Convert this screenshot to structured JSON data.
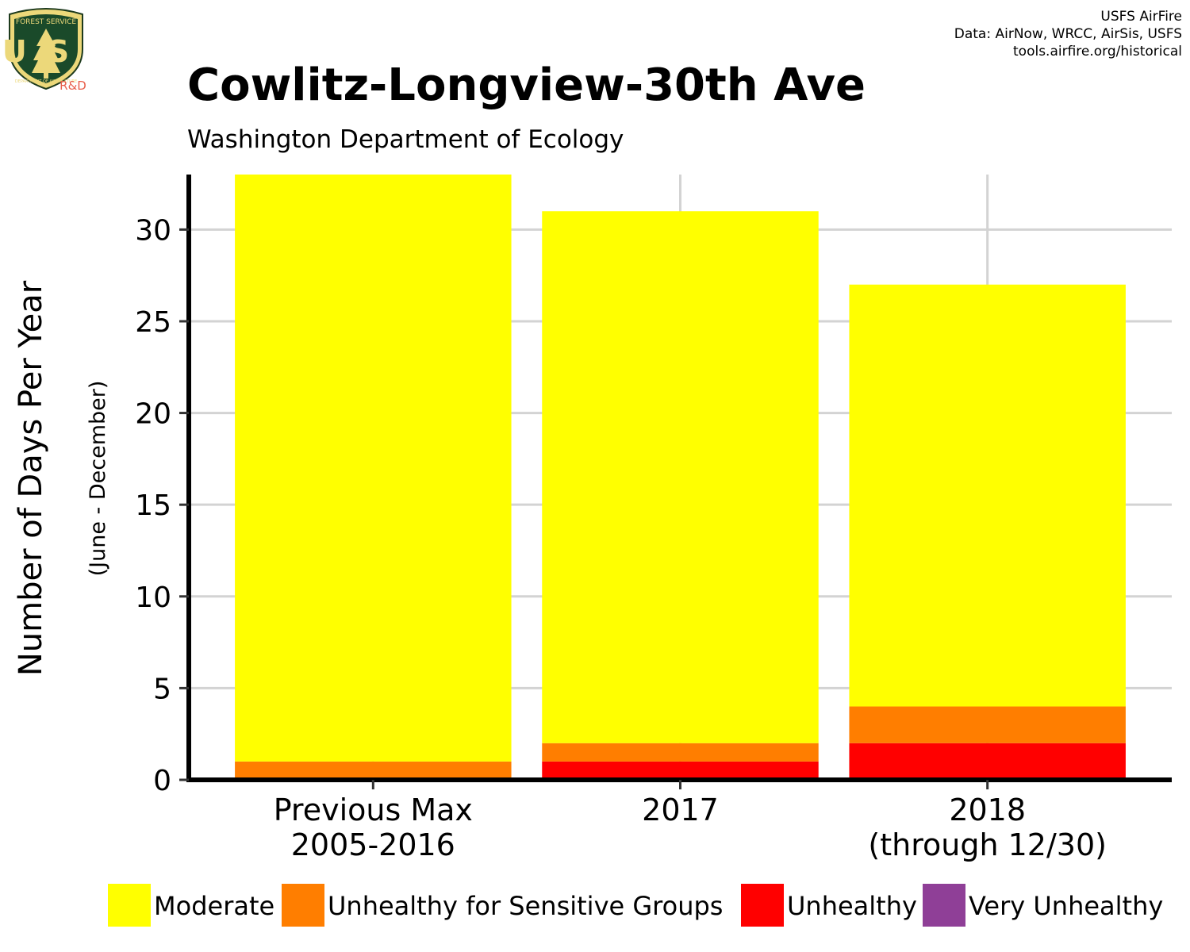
{
  "branding": {
    "logo_top": "FOREST SERVICE",
    "logo_mid": "US",
    "logo_bottom": "DEPARTMENT OF AGRICULTURE",
    "logo_tag": "R&D"
  },
  "credits": {
    "line1": "USFS AirFire",
    "line2": "Data: AirNow, WRCC, AirSis, USFS",
    "line3": "tools.airfire.org/historical"
  },
  "chart_data": {
    "type": "bar",
    "stacked": true,
    "title": "Cowlitz-Longview-30th Ave",
    "subtitle": "Washington Department of Ecology",
    "ylabel": "Number of Days Per Year",
    "ylabel_sub": "(June - December)",
    "xlabel": "",
    "ylim": [
      0,
      33
    ],
    "yticks": [
      0,
      5,
      10,
      15,
      20,
      25,
      30
    ],
    "grid": true,
    "legend_position": "bottom",
    "categories": [
      [
        "Previous Max",
        "2005-2016"
      ],
      [
        "2017"
      ],
      [
        "2018",
        "(through 12/30)"
      ]
    ],
    "series": [
      {
        "name": "Unhealthy",
        "color": "#ff0000",
        "values": [
          0,
          1,
          2
        ]
      },
      {
        "name": "Unhealthy for Sensitive Groups",
        "color": "#ff7e00",
        "values": [
          1,
          1,
          2
        ]
      },
      {
        "name": "Moderate",
        "color": "#ffff00",
        "values": [
          32,
          29,
          23
        ]
      },
      {
        "name": "Very Unhealthy",
        "color": "#8f3f97",
        "values": [
          0,
          0,
          0
        ]
      }
    ],
    "legend": [
      {
        "name": "Moderate",
        "color": "#ffff00"
      },
      {
        "name": "Unhealthy for Sensitive Groups",
        "color": "#ff7e00"
      },
      {
        "name": "Unhealthy",
        "color": "#ff0000"
      },
      {
        "name": "Very Unhealthy",
        "color": "#8f3f97"
      }
    ]
  }
}
